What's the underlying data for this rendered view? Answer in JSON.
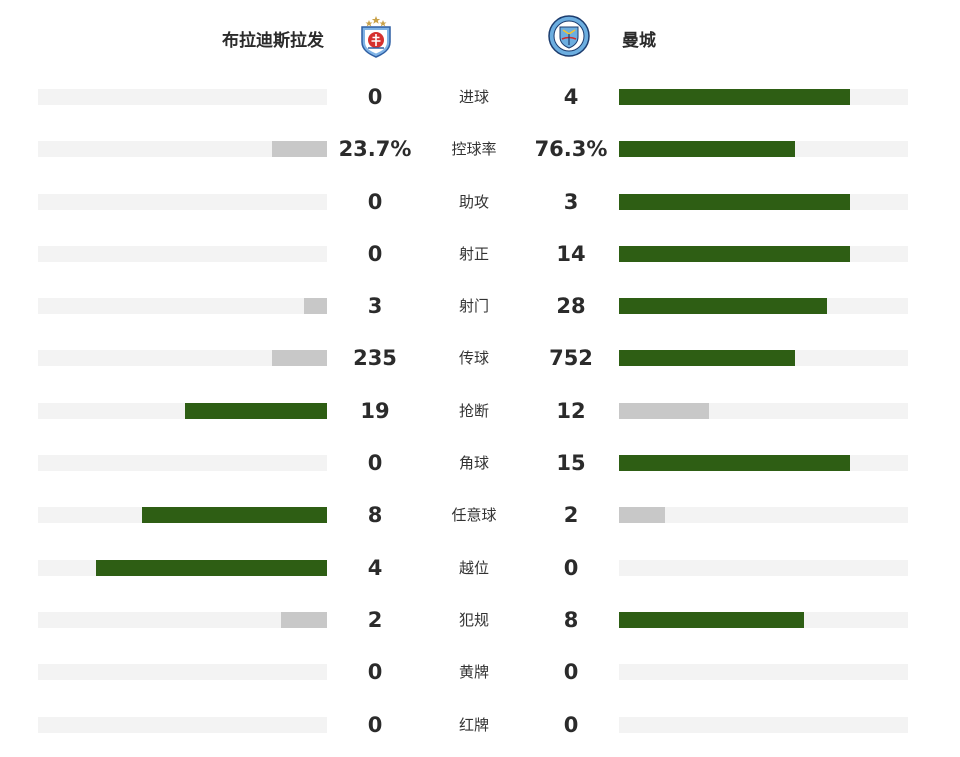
{
  "teams": {
    "home": {
      "name": "布拉迪斯拉发",
      "logo_icon": "slovan-bratislava-crest-icon"
    },
    "away": {
      "name": "曼城",
      "logo_icon": "manchester-city-crest-icon"
    }
  },
  "colors": {
    "leader_bar": "#2e5e14",
    "trailer_bar": "#c8c8c8",
    "track": "#f3f3f3"
  },
  "stats": [
    {
      "label": "进球",
      "home": "0",
      "away": "4",
      "home_fill": 0.0,
      "away_fill": 0.8,
      "leader": "away"
    },
    {
      "label": "控球率",
      "home": "23.7%",
      "away": "76.3%",
      "home_fill": 0.19,
      "away_fill": 0.61,
      "leader": "away"
    },
    {
      "label": "助攻",
      "home": "0",
      "away": "3",
      "home_fill": 0.0,
      "away_fill": 0.8,
      "leader": "away"
    },
    {
      "label": "射正",
      "home": "0",
      "away": "14",
      "home_fill": 0.0,
      "away_fill": 0.8,
      "leader": "away"
    },
    {
      "label": "射门",
      "home": "3",
      "away": "28",
      "home_fill": 0.08,
      "away_fill": 0.72,
      "leader": "away"
    },
    {
      "label": "传球",
      "home": "235",
      "away": "752",
      "home_fill": 0.19,
      "away_fill": 0.61,
      "leader": "away"
    },
    {
      "label": "抢断",
      "home": "19",
      "away": "12",
      "home_fill": 0.49,
      "away_fill": 0.31,
      "leader": "home"
    },
    {
      "label": "角球",
      "home": "0",
      "away": "15",
      "home_fill": 0.0,
      "away_fill": 0.8,
      "leader": "away"
    },
    {
      "label": "任意球",
      "home": "8",
      "away": "2",
      "home_fill": 0.64,
      "away_fill": 0.16,
      "leader": "home"
    },
    {
      "label": "越位",
      "home": "4",
      "away": "0",
      "home_fill": 0.8,
      "away_fill": 0.0,
      "leader": "home"
    },
    {
      "label": "犯规",
      "home": "2",
      "away": "8",
      "home_fill": 0.16,
      "away_fill": 0.64,
      "leader": "away"
    },
    {
      "label": "黄牌",
      "home": "0",
      "away": "0",
      "home_fill": 0.0,
      "away_fill": 0.0,
      "leader": "none"
    },
    {
      "label": "红牌",
      "home": "0",
      "away": "0",
      "home_fill": 0.0,
      "away_fill": 0.0,
      "leader": "none"
    }
  ]
}
